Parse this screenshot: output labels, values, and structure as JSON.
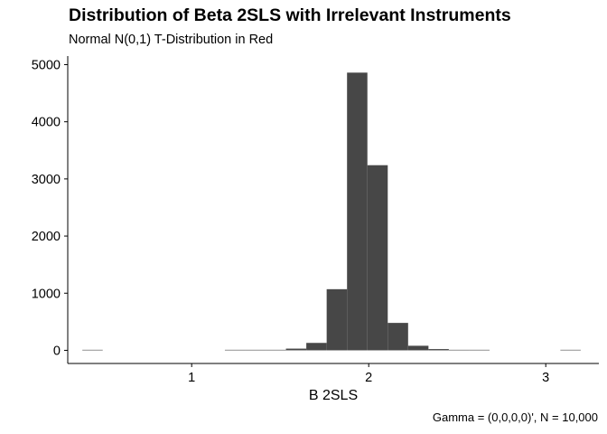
{
  "chart_data": {
    "type": "bar",
    "title": "Distribution of Beta 2SLS with Irrelevant Instruments",
    "subtitle": "Normal N(0,1) T-Distribution in Red",
    "caption": "Gamma = (0,0,0,0)', N = 10,000",
    "xlabel": "B 2SLS",
    "ylabel": "",
    "xlim": [
      0.3,
      3.3
    ],
    "ylim": [
      -230,
      5150
    ],
    "x_ticks": [
      1,
      2,
      3
    ],
    "y_ticks": [
      0,
      1000,
      2000,
      3000,
      4000,
      5000
    ],
    "bin_width": 0.115,
    "bin_centers": [
      0.44,
      1.245,
      1.36,
      1.475,
      1.59,
      1.705,
      1.82,
      1.935,
      2.05,
      2.165,
      2.28,
      2.395,
      2.51,
      2.625,
      3.14
    ],
    "counts": [
      1,
      2,
      4,
      8,
      30,
      130,
      1070,
      4860,
      3240,
      480,
      80,
      22,
      6,
      2,
      1
    ],
    "bar_color": "#474747",
    "grid": false,
    "legend": "none"
  }
}
